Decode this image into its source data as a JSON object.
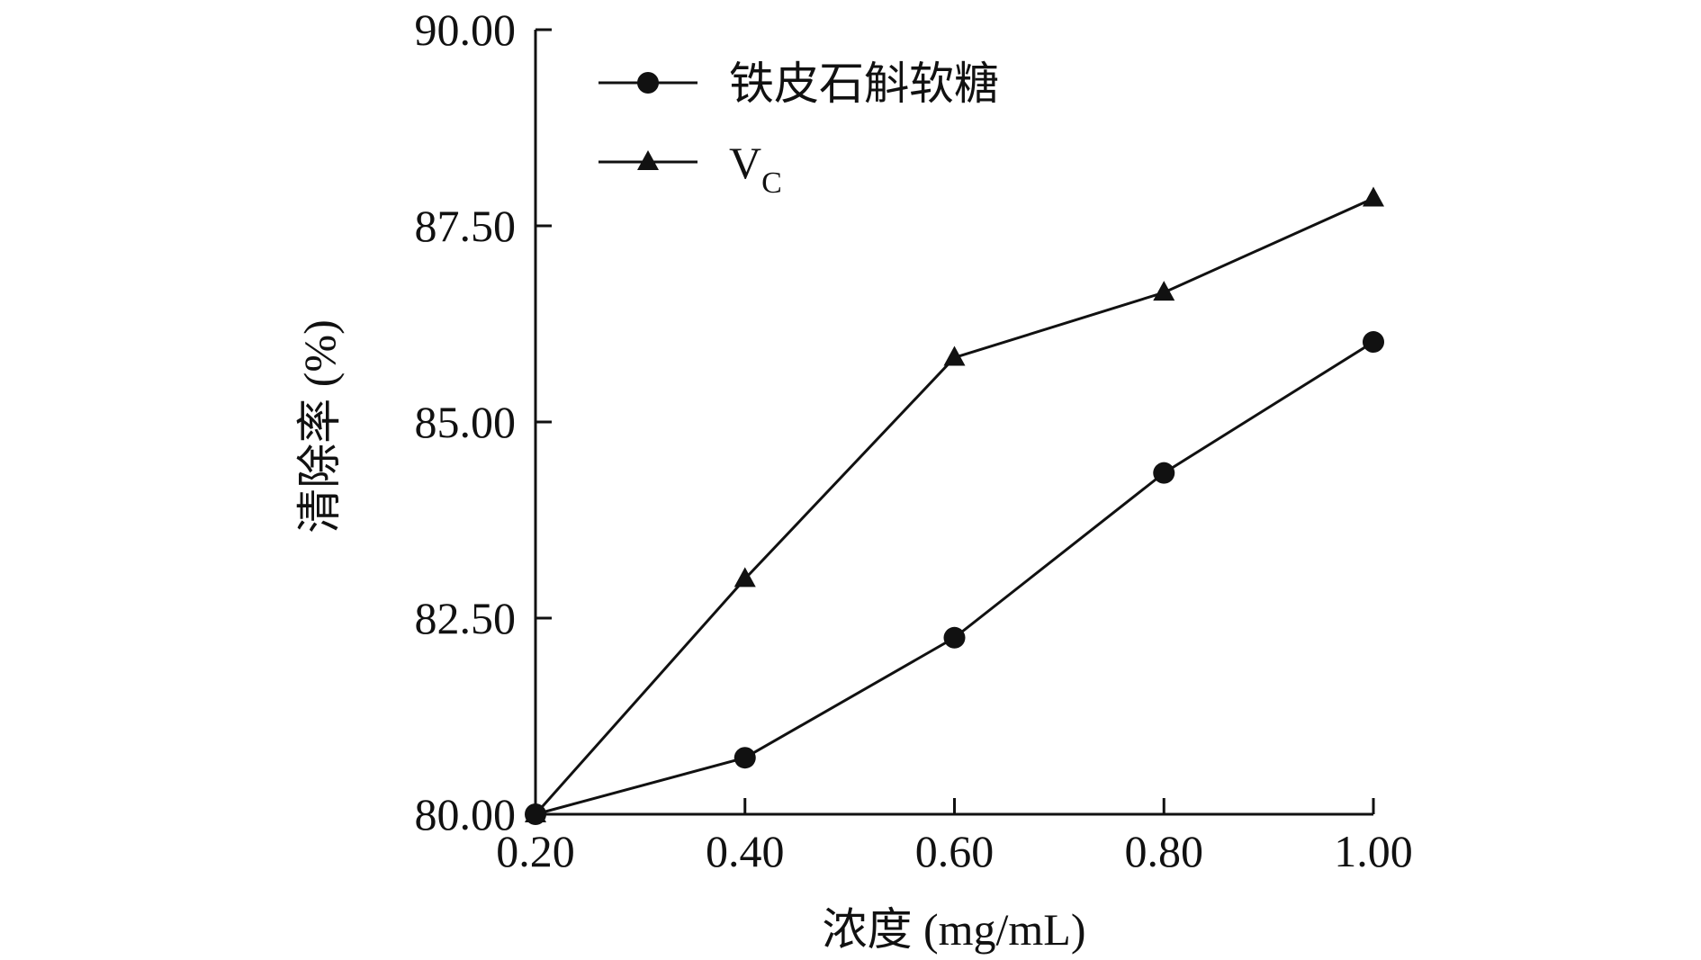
{
  "chart_data": {
    "type": "line",
    "title": "",
    "xlabel": "浓度 (mg/mL)",
    "ylabel": "清除率 (%)",
    "x": [
      0.2,
      0.4,
      0.6,
      0.8,
      1.0
    ],
    "x_tick_labels": [
      "0.20",
      "0.40",
      "0.60",
      "0.80",
      "1.00"
    ],
    "y_tick_values": [
      80,
      82.5,
      85,
      87.5,
      90
    ],
    "y_tick_labels": [
      "80.00",
      "82.50",
      "85.00",
      "87.50",
      "90.00"
    ],
    "xlim": [
      0.2,
      1.0
    ],
    "ylim": [
      80,
      90
    ],
    "grid": false,
    "legend_position": "top-left",
    "series": [
      {
        "name": "铁皮石斛软糖",
        "marker": "circle",
        "values": [
          80.0,
          80.72,
          82.25,
          84.35,
          86.02
        ]
      },
      {
        "name": "V",
        "name_subscript": "C",
        "marker": "triangle",
        "values": [
          80.0,
          83.0,
          85.82,
          86.65,
          87.85
        ]
      }
    ],
    "colors": {
      "line": "#111111",
      "marker": "#111111"
    }
  }
}
